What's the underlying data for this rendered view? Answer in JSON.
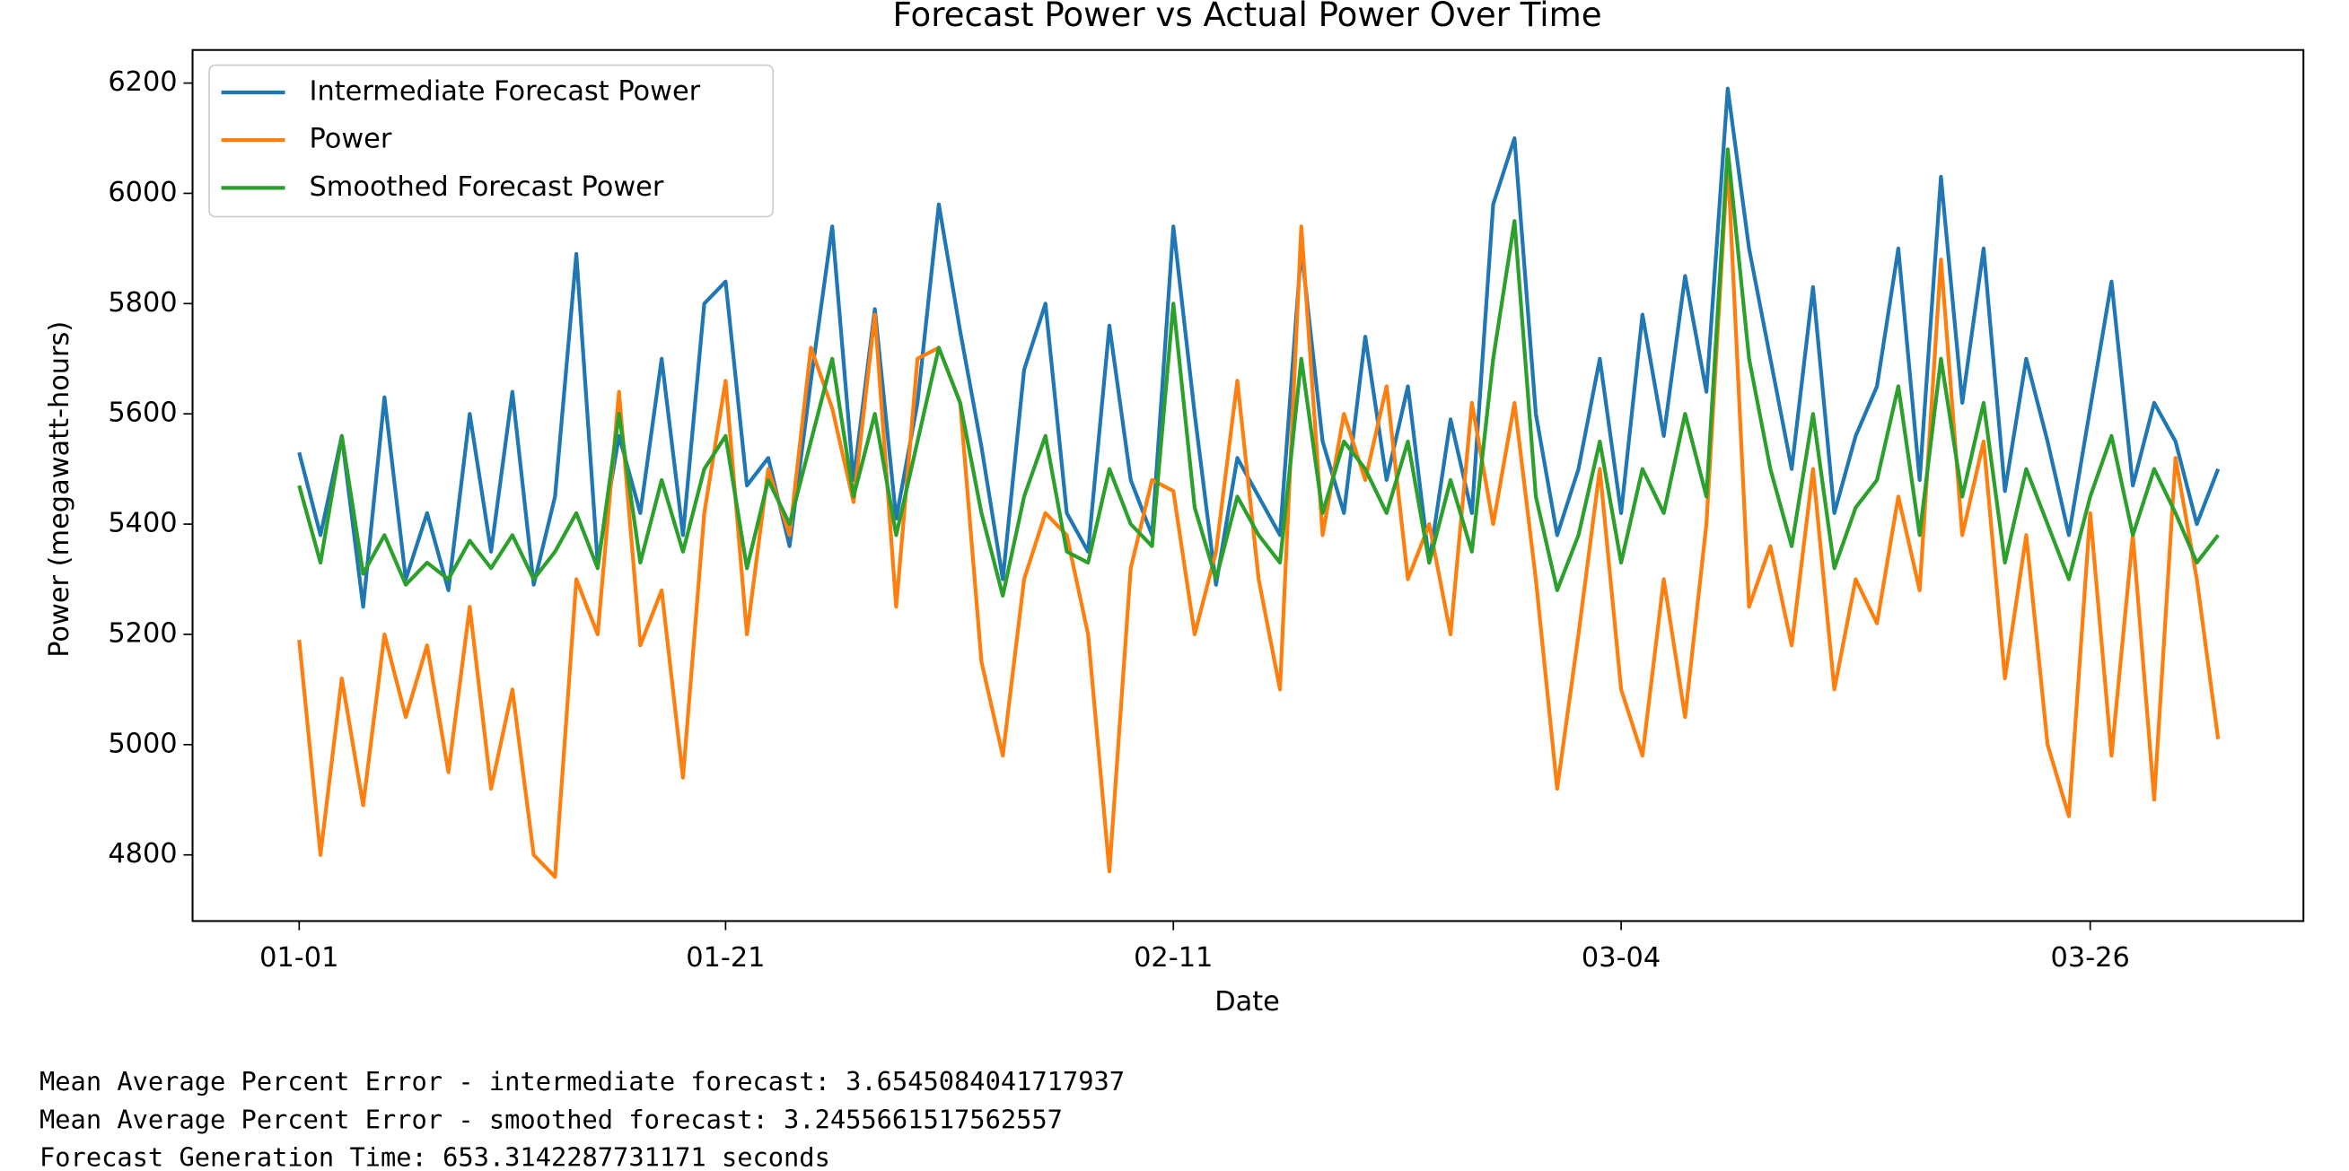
{
  "chart_data": {
    "type": "line",
    "title": "Forecast Power vs Actual Power Over Time",
    "xlabel": "Date",
    "ylabel": "Power (megawatt-hours)",
    "x": [
      "01-01",
      "01-02",
      "01-03",
      "01-04",
      "01-05",
      "01-06",
      "01-07",
      "01-08",
      "01-09",
      "01-10",
      "01-11",
      "01-12",
      "01-13",
      "01-14",
      "01-15",
      "01-16",
      "01-17",
      "01-18",
      "01-19",
      "01-20",
      "01-21",
      "01-22",
      "01-23",
      "01-24",
      "01-25",
      "01-26",
      "01-27",
      "01-28",
      "01-29",
      "01-30",
      "01-31",
      "02-01",
      "02-02",
      "02-03",
      "02-04",
      "02-05",
      "02-06",
      "02-07",
      "02-08",
      "02-09",
      "02-10",
      "02-11",
      "02-12",
      "02-13",
      "02-14",
      "02-15",
      "02-16",
      "02-17",
      "02-18",
      "02-19",
      "02-20",
      "02-21",
      "02-22",
      "02-23",
      "02-24",
      "02-25",
      "02-26",
      "02-27",
      "02-28",
      "03-01",
      "03-02",
      "03-03",
      "03-04",
      "03-05",
      "03-06",
      "03-07",
      "03-08",
      "03-09",
      "03-10",
      "03-11",
      "03-12",
      "03-13",
      "03-14",
      "03-15",
      "03-16",
      "03-17",
      "03-18",
      "03-19",
      "03-20",
      "03-21",
      "03-22",
      "03-23",
      "03-24",
      "03-25",
      "03-26",
      "03-27",
      "03-28",
      "03-29",
      "03-30",
      "03-31",
      "04-01"
    ],
    "series": [
      {
        "name": "Intermediate Forecast Power",
        "color": "#1f77b4",
        "values": [
          5530,
          5380,
          5560,
          5250,
          5630,
          5300,
          5420,
          5280,
          5600,
          5350,
          5640,
          5290,
          5450,
          5890,
          5330,
          5560,
          5420,
          5700,
          5380,
          5800,
          5840,
          5470,
          5520,
          5360,
          5660,
          5940,
          5480,
          5790,
          5410,
          5620,
          5980,
          5750,
          5540,
          5300,
          5680,
          5800,
          5420,
          5350,
          5760,
          5480,
          5380,
          5940,
          5600,
          5290,
          5520,
          5450,
          5380,
          5900,
          5550,
          5420,
          5740,
          5480,
          5650,
          5330,
          5590,
          5420,
          5980,
          6100,
          5600,
          5380,
          5500,
          5700,
          5420,
          5780,
          5560,
          5850,
          5640,
          6190,
          5900,
          5700,
          5500,
          5830,
          5420,
          5560,
          5650,
          5900,
          5480,
          6030,
          5620,
          5900,
          5460,
          5700,
          5550,
          5380,
          5610,
          5840,
          5470,
          5620,
          5550,
          5400,
          5500
        ]
      },
      {
        "name": "Power",
        "color": "#ff7f0e",
        "values": [
          5190,
          4800,
          5120,
          4890,
          5200,
          5050,
          5180,
          4950,
          5250,
          4920,
          5100,
          4800,
          4760,
          5300,
          5200,
          5640,
          5180,
          5280,
          4940,
          5420,
          5660,
          5200,
          5500,
          5380,
          5720,
          5610,
          5440,
          5780,
          5250,
          5700,
          5720,
          5620,
          5150,
          4980,
          5300,
          5420,
          5380,
          5200,
          4770,
          5320,
          5480,
          5460,
          5200,
          5350,
          5660,
          5300,
          5100,
          5940,
          5380,
          5600,
          5480,
          5650,
          5300,
          5400,
          5200,
          5620,
          5400,
          5620,
          5300,
          4920,
          5200,
          5500,
          5100,
          4980,
          5300,
          5050,
          5400,
          6060,
          5250,
          5360,
          5180,
          5500,
          5100,
          5300,
          5220,
          5450,
          5280,
          5880,
          5380,
          5550,
          5120,
          5380,
          5000,
          4870,
          5420,
          4980,
          5380,
          4900,
          5520,
          5300,
          5010
        ]
      },
      {
        "name": "Smoothed Forecast Power",
        "color": "#2ca02c",
        "values": [
          5470,
          5330,
          5560,
          5310,
          5380,
          5290,
          5330,
          5300,
          5370,
          5320,
          5380,
          5300,
          5350,
          5420,
          5320,
          5600,
          5330,
          5480,
          5350,
          5500,
          5560,
          5320,
          5480,
          5400,
          5550,
          5700,
          5450,
          5600,
          5380,
          5550,
          5720,
          5620,
          5420,
          5270,
          5450,
          5560,
          5350,
          5330,
          5500,
          5400,
          5360,
          5800,
          5430,
          5300,
          5450,
          5380,
          5330,
          5700,
          5420,
          5550,
          5500,
          5420,
          5550,
          5330,
          5480,
          5350,
          5700,
          5950,
          5450,
          5280,
          5380,
          5550,
          5330,
          5500,
          5420,
          5600,
          5450,
          6080,
          5700,
          5500,
          5360,
          5600,
          5320,
          5430,
          5480,
          5650,
          5380,
          5700,
          5450,
          5620,
          5330,
          5500,
          5400,
          5300,
          5450,
          5560,
          5380,
          5500,
          5420,
          5330,
          5380
        ]
      }
    ],
    "xlim": [
      "12-27",
      "04-05"
    ],
    "xticks": [
      "01-01",
      "01-21",
      "02-11",
      "03-04",
      "03-26"
    ],
    "ylim": [
      4680,
      6260
    ],
    "yticks": [
      4800,
      5000,
      5200,
      5400,
      5600,
      5800,
      6000,
      6200
    ],
    "legend": "upper left"
  },
  "output_lines": [
    "Mean Average Percent Error - intermediate forecast:  3.6545084041717937",
    "Mean Average Percent Error - smoothed forecast:  3.2455661517562557",
    "Forecast Generation Time: 653.3142287731171 seconds"
  ]
}
